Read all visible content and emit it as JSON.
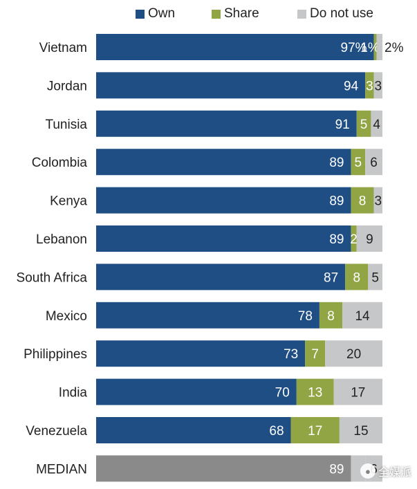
{
  "colors": {
    "own": "#1f4e85",
    "share": "#92a544",
    "not_use": "#c6c7c8",
    "median": "#8a8a8a"
  },
  "chart_data": {
    "type": "bar",
    "orientation": "horizontal-stacked",
    "legend": [
      {
        "key": "own",
        "label": "Own"
      },
      {
        "key": "share",
        "label": "Share"
      },
      {
        "key": "not_use",
        "label": "Do not use"
      }
    ],
    "legend_position": "top",
    "categories": [
      "Vietnam",
      "Jordan",
      "Tunisia",
      "Colombia",
      "Kenya",
      "Lebanon",
      "South Africa",
      "Mexico",
      "Philippines",
      "India",
      "Venezuela",
      "MEDIAN"
    ],
    "series": [
      {
        "name": "Own",
        "key": "own",
        "values": [
          97,
          94,
          91,
          89,
          89,
          89,
          87,
          78,
          73,
          70,
          68,
          89
        ],
        "labels": [
          "97%",
          "94",
          "91",
          "89",
          "89",
          "89",
          "87",
          "78",
          "73",
          "70",
          "68",
          "89"
        ]
      },
      {
        "name": "Share",
        "key": "share",
        "values": [
          1,
          3,
          5,
          5,
          8,
          2,
          8,
          8,
          7,
          13,
          17,
          5
        ],
        "labels": [
          "1%",
          "3",
          "5",
          "5",
          "8",
          "2",
          "8",
          "8",
          "7",
          "13",
          "17",
          ""
        ]
      },
      {
        "name": "Do not use",
        "key": "not_use",
        "values": [
          2,
          3,
          4,
          6,
          3,
          9,
          5,
          14,
          20,
          17,
          15,
          6
        ],
        "labels": [
          "2%",
          "3",
          "4",
          "6",
          "3",
          "9",
          "5",
          "14",
          "20",
          "17",
          "15",
          "6"
        ]
      }
    ],
    "xlim": [
      0,
      100
    ],
    "grid": false
  },
  "watermark": {
    "icon": "wechat-icon",
    "text": "全媒派"
  }
}
